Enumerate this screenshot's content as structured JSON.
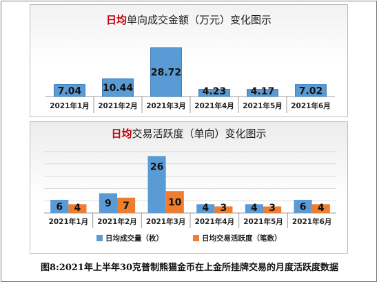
{
  "chart_data": [
    {
      "type": "bar",
      "title_highlight": "日均",
      "title_rest": "单向成交金额（万元）变化图示",
      "categories": [
        "2021年1月",
        "2021年2月",
        "2021年3月",
        "2021年4月",
        "2021年5月",
        "2021年6月"
      ],
      "values": [
        7.04,
        10.44,
        28.72,
        4.23,
        4.17,
        7.02
      ],
      "value_labels": [
        "7.04",
        "10.44",
        "28.72",
        "4.23",
        "4.17",
        "7.02"
      ],
      "ylim": [
        0,
        30
      ],
      "grid": false,
      "colors": {
        "bar": "#5b9bd5",
        "bar_edge": "#2e75b6"
      }
    },
    {
      "type": "bar",
      "title_highlight": "日均",
      "title_rest": "交易活跃度（单向）变化图示",
      "categories": [
        "2021年1月",
        "2021年2月",
        "2021年3月",
        "2021年4月",
        "2021年5月",
        "2021年6月"
      ],
      "series": [
        {
          "name": "日均成交量（枚）",
          "values": [
            6,
            9,
            26,
            4,
            4,
            6
          ],
          "labels": [
            "6",
            "9",
            "26",
            "4",
            "4",
            "6"
          ],
          "color": "#5b9bd5"
        },
        {
          "name": "日均交易活跃度（笔数）",
          "values": [
            4,
            7,
            10,
            3,
            3,
            4
          ],
          "labels": [
            "4",
            "7",
            "10",
            "3",
            "3",
            "4"
          ],
          "color": "#ed7d31"
        }
      ],
      "ylim": [
        0,
        28
      ],
      "grid": true,
      "legend": "bottom"
    }
  ],
  "caption": "图8:2021年上半年30克普制熊猫金币在上金所挂牌交易的月度活跃度数据"
}
